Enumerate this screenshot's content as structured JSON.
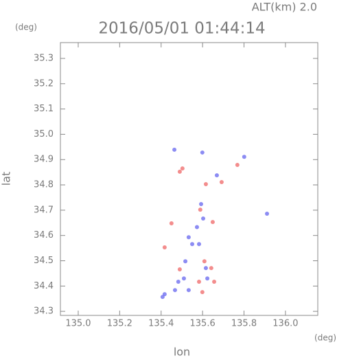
{
  "chart_data": {
    "type": "scatter",
    "title": "2016/05/01 01:44:14",
    "annotation": "ALT(km) 2.0",
    "y_unit": "(deg)",
    "x_unit": "(deg)",
    "x_label": "lon",
    "y_label": "lat",
    "xlim": [
      134.914,
      136.156
    ],
    "ylim": [
      34.284,
      35.3625
    ],
    "xticks": [
      {
        "value": 135.0,
        "label": "135.0"
      },
      135.2,
      135.4,
      135.6,
      135.8,
      {
        "value": 136.0,
        "label": "136.0"
      }
    ],
    "yticks": [
      34.3,
      34.4,
      34.5,
      34.6,
      34.7,
      34.8,
      34.9,
      {
        "value": 35.0,
        "label": "35.0"
      },
      35.1,
      35.2,
      35.3
    ],
    "series": [
      {
        "color": "#6f6ff0",
        "x": [
          135.464,
          135.599,
          135.801,
          135.669,
          135.593,
          135.911,
          135.603,
          135.533,
          135.55,
          135.583,
          135.517,
          135.616,
          135.51,
          135.467,
          135.533,
          135.417,
          135.407,
          135.483,
          135.623,
          135.573
        ],
        "values": [
          34.939,
          34.928,
          34.911,
          34.838,
          34.724,
          34.686,
          34.667,
          34.593,
          34.566,
          34.566,
          34.498,
          34.471,
          34.43,
          34.384,
          34.384,
          34.368,
          34.357,
          34.417,
          34.43,
          34.633
        ]
      },
      {
        "color": "#f07070",
        "x": [
          135.503,
          135.768,
          135.616,
          135.692,
          135.649,
          135.45,
          135.589,
          135.609,
          135.642,
          135.583,
          135.656,
          135.49,
          135.599,
          135.417,
          135.49
        ],
        "values": [
          34.865,
          34.879,
          34.803,
          34.811,
          34.653,
          34.648,
          34.702,
          34.498,
          34.471,
          34.417,
          34.417,
          34.466,
          34.376,
          34.553,
          34.852
        ]
      }
    ]
  }
}
